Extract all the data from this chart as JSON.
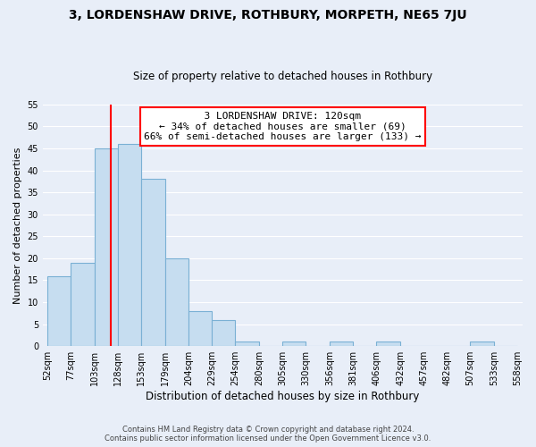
{
  "title": "3, LORDENSHAW DRIVE, ROTHBURY, MORPETH, NE65 7JU",
  "subtitle": "Size of property relative to detached houses in Rothbury",
  "xlabel": "Distribution of detached houses by size in Rothbury",
  "ylabel": "Number of detached properties",
  "bar_edges": [
    52,
    77,
    103,
    128,
    153,
    179,
    204,
    229,
    254,
    280,
    305,
    330,
    356,
    381,
    406,
    432,
    457,
    482,
    507,
    533,
    558
  ],
  "bar_heights": [
    16,
    19,
    45,
    46,
    38,
    20,
    8,
    6,
    1,
    0,
    1,
    0,
    1,
    0,
    1,
    0,
    0,
    0,
    1,
    0
  ],
  "bar_color": "#c6ddf0",
  "bar_edge_color": "#7ab0d4",
  "vline_x": 120,
  "vline_color": "red",
  "annotation_text": "  3 LORDENSHAW DRIVE: 120sqm  \n← 34% of detached houses are smaller (69)\n66% of semi-detached houses are larger (133) →",
  "annotation_box_color": "white",
  "annotation_box_edge": "red",
  "ylim": [
    0,
    55
  ],
  "yticks": [
    0,
    5,
    10,
    15,
    20,
    25,
    30,
    35,
    40,
    45,
    50,
    55
  ],
  "footnote1": "Contains HM Land Registry data © Crown copyright and database right 2024.",
  "footnote2": "Contains public sector information licensed under the Open Government Licence v3.0.",
  "bg_color": "#e8eef8",
  "plot_bg_color": "#e8eef8",
  "grid_color": "white"
}
